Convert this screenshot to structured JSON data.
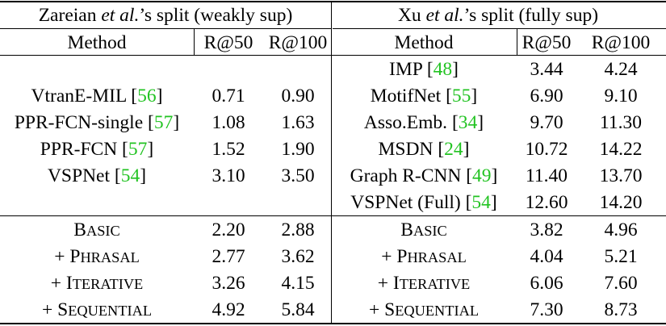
{
  "left": {
    "title_prefix": "Zareian ",
    "title_etal": "et al.",
    "title_suffix": "’s split (weakly sup)",
    "headers": [
      "Method",
      "R@50",
      "R@100"
    ],
    "rows": [
      {
        "name": "VtranE-MIL ",
        "cite": "56",
        "r50": "0.71",
        "r100": "0.90"
      },
      {
        "name": "PPR-FCN-single ",
        "cite": "57",
        "r50": "1.08",
        "r100": "1.63"
      },
      {
        "name": "PPR-FCN ",
        "cite": "57",
        "r50": "1.52",
        "r100": "1.90"
      },
      {
        "name": "VSPNet ",
        "cite": "54",
        "r50": "3.10",
        "r100": "3.50"
      }
    ],
    "ours": [
      {
        "prefix": "",
        "cap": "B",
        "rest": "ASIC",
        "r50": "2.20",
        "r100": "2.88"
      },
      {
        "prefix": "+ ",
        "cap": "P",
        "rest": "HRASAL",
        "r50": "2.77",
        "r100": "3.62"
      },
      {
        "prefix": "+ ",
        "cap": "I",
        "rest": "TERATIVE",
        "r50": "3.26",
        "r100": "4.15"
      },
      {
        "prefix": "+ ",
        "cap": "S",
        "rest": "EQUENTIAL",
        "r50": "4.92",
        "r100": "5.84"
      }
    ]
  },
  "right": {
    "title_prefix": "Xu ",
    "title_etal": "et al.",
    "title_suffix": "’s split (fully sup)",
    "headers": [
      "Method",
      "R@50",
      "R@100"
    ],
    "rows": [
      {
        "name": "IMP ",
        "cite": "48",
        "r50": "3.44",
        "r100": "4.24"
      },
      {
        "name": "MotifNet ",
        "cite": "55",
        "r50": "6.90",
        "r100": "9.10"
      },
      {
        "name": "Asso.Emb. ",
        "cite": "34",
        "r50": "9.70",
        "r100": "11.30"
      },
      {
        "name": "MSDN ",
        "cite": "24",
        "r50": "10.72",
        "r100": "14.22"
      },
      {
        "name": "Graph R-CNN ",
        "cite": "49",
        "r50": "11.40",
        "r100": "13.70"
      },
      {
        "name": "VSPNet (Full) ",
        "cite": "54",
        "r50": "12.60",
        "r100": "14.20"
      }
    ],
    "ours": [
      {
        "prefix": "",
        "cap": "B",
        "rest": "ASIC",
        "r50": "3.82",
        "r100": "4.96"
      },
      {
        "prefix": "+ ",
        "cap": "P",
        "rest": "HRASAL",
        "r50": "4.04",
        "r100": "5.21"
      },
      {
        "prefix": "+ ",
        "cap": "I",
        "rest": "TERATIVE",
        "r50": "6.06",
        "r100": "7.60"
      },
      {
        "prefix": "+ ",
        "cap": "S",
        "rest": "EQUENTIAL",
        "r50": "7.30",
        "r100": "8.73"
      }
    ]
  },
  "colors": {
    "citation": "#22c322",
    "text": "#000000"
  }
}
